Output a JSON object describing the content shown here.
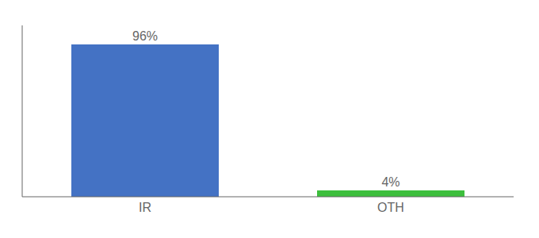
{
  "chart_data": {
    "type": "bar",
    "categories": [
      "IR",
      "OTH"
    ],
    "values": [
      96,
      4
    ],
    "value_labels": [
      "96%",
      "4%"
    ],
    "colors": [
      "#4472c4",
      "#3dbf3d"
    ],
    "ylim": [
      0,
      108
    ],
    "tick_labels": "x",
    "data_labels": true
  }
}
